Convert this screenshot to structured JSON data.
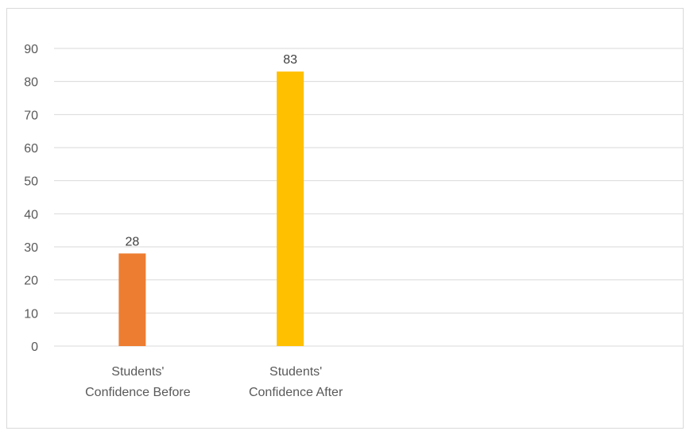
{
  "chart_data": {
    "type": "bar",
    "categories": [
      "Students' Confidence Before",
      "Students' Confidence After"
    ],
    "category_lines": [
      [
        "Students'",
        "Confidence Before"
      ],
      [
        "Students'",
        "Confidence After"
      ]
    ],
    "values": [
      28,
      83
    ],
    "data_labels": [
      "28",
      "83"
    ],
    "colors": [
      "#ED7D31",
      "#FFC000"
    ],
    "ylim": [
      0,
      90
    ],
    "yticks": [
      0,
      10,
      20,
      30,
      40,
      50,
      60,
      70,
      80,
      90
    ],
    "slots": 4,
    "grid": true,
    "title": "",
    "xlabel": "",
    "ylabel": ""
  }
}
